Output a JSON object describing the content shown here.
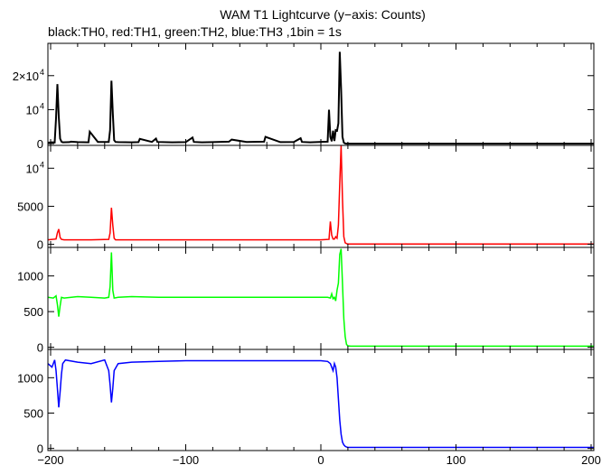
{
  "chart_data": {
    "title": "WAM T1 Lightcurve (y−axis: Counts)",
    "subtitle": "black:TH0, red:TH1, green:TH2, blue:TH3 ,1bin = 1s",
    "type": "line",
    "grid": false,
    "x_range": [
      -202,
      202
    ],
    "x_ticks": [
      {
        "value": -200,
        "label": "−200"
      },
      {
        "value": -100,
        "label": "−100"
      },
      {
        "value": 0,
        "label": "0"
      },
      {
        "value": 100,
        "label": "100"
      },
      {
        "value": 200,
        "label": "200"
      }
    ],
    "panels": [
      {
        "name": "TH0",
        "color": "#000000",
        "ylim": [
          -500,
          29500
        ],
        "y_ticks": [
          {
            "value": 0,
            "label": "0",
            "exp": ""
          },
          {
            "value": 10000,
            "label": "10",
            "exp": "4"
          },
          {
            "value": 20000,
            "label": "2×10",
            "exp": "4"
          }
        ],
        "x": [
          -202,
          -199,
          -197,
          -196,
          -195,
          -194,
          -193,
          -192,
          -191,
          -186,
          -185,
          -180,
          -172,
          -171,
          -165,
          -157,
          -156,
          -155,
          -154,
          -153,
          -152,
          -150,
          -140,
          -135,
          -134,
          -125,
          -122,
          -121,
          -110,
          -100,
          -95,
          -94,
          -88,
          -80,
          -68,
          -66,
          -55,
          -42,
          -41,
          -30,
          -20,
          -15,
          -14,
          -8,
          5,
          6,
          7,
          8,
          9,
          10,
          11,
          12,
          13,
          14,
          15,
          16,
          17,
          18,
          19,
          25,
          60,
          100,
          150,
          202
        ],
        "values": [
          300,
          400,
          350,
          7500,
          17500,
          8000,
          1500,
          600,
          400,
          450,
          600,
          450,
          400,
          3500,
          500,
          500,
          4000,
          18500,
          9000,
          1000,
          500,
          450,
          400,
          450,
          1400,
          500,
          1500,
          500,
          400,
          450,
          1800,
          500,
          400,
          450,
          600,
          1200,
          500,
          600,
          2000,
          450,
          500,
          1600,
          500,
          400,
          600,
          10000,
          2000,
          700,
          3800,
          800,
          4000,
          3800,
          6000,
          27000,
          16000,
          2000,
          300,
          50,
          0,
          0,
          0,
          0,
          0,
          0
        ]
      },
      {
        "name": "TH1",
        "color": "#ff0000",
        "ylim": [
          -400,
          13000
        ],
        "y_ticks": [
          {
            "value": 0,
            "label": "0",
            "exp": ""
          },
          {
            "value": 5000,
            "label": "5000",
            "exp": ""
          },
          {
            "value": 10000,
            "label": "10",
            "exp": "4"
          }
        ],
        "x": [
          -202,
          -196,
          -195,
          -194,
          -193,
          -192,
          -190,
          -170,
          -157,
          -156,
          -155,
          -154,
          -153,
          -152,
          -120,
          -80,
          -40,
          0,
          6,
          7,
          8,
          9,
          10,
          11,
          12,
          13,
          14,
          15,
          16,
          17,
          18,
          19,
          20,
          25,
          60,
          100,
          150,
          202
        ],
        "values": [
          600,
          700,
          1500,
          2000,
          900,
          650,
          600,
          600,
          650,
          1500,
          4800,
          2500,
          800,
          600,
          600,
          600,
          600,
          600,
          650,
          3000,
          1200,
          700,
          700,
          1000,
          800,
          2500,
          8000,
          13000,
          6000,
          1000,
          200,
          100,
          50,
          50,
          50,
          50,
          50,
          50
        ]
      },
      {
        "name": "TH2",
        "color": "#00ff00",
        "ylim": [
          -30,
          1400
        ],
        "y_ticks": [
          {
            "value": 0,
            "label": "0",
            "exp": ""
          },
          {
            "value": 500,
            "label": "500",
            "exp": ""
          },
          {
            "value": 1000,
            "label": "1000",
            "exp": ""
          }
        ],
        "x": [
          -202,
          -198,
          -196,
          -195,
          -194,
          -193,
          -192,
          -190,
          -180,
          -170,
          -160,
          -157,
          -156,
          -155,
          -154,
          -153,
          -150,
          -140,
          -120,
          -100,
          -80,
          -60,
          -40,
          -20,
          0,
          5,
          7,
          8,
          9,
          10,
          11,
          12,
          13,
          14,
          15,
          16,
          17,
          18,
          19,
          20,
          22,
          25,
          60,
          100,
          150,
          202
        ],
        "values": [
          700,
          690,
          720,
          600,
          430,
          580,
          700,
          690,
          710,
          700,
          690,
          700,
          850,
          1330,
          800,
          690,
          700,
          710,
          700,
          700,
          700,
          700,
          700,
          700,
          700,
          700,
          690,
          750,
          680,
          700,
          650,
          800,
          900,
          1300,
          1380,
          900,
          400,
          150,
          40,
          20,
          15,
          15,
          15,
          15,
          15,
          15
        ]
      },
      {
        "name": "TH3",
        "color": "#0000ff",
        "ylim": [
          -30,
          1400
        ],
        "y_ticks": [
          {
            "value": 0,
            "label": "0",
            "exp": ""
          },
          {
            "value": 500,
            "label": "500",
            "exp": ""
          },
          {
            "value": 1000,
            "label": "1000",
            "exp": ""
          }
        ],
        "x": [
          -202,
          -199,
          -197,
          -196,
          -195,
          -194,
          -193,
          -192,
          -191,
          -189,
          -180,
          -170,
          -160,
          -157,
          -156,
          -155,
          -154,
          -153,
          -150,
          -140,
          -120,
          -100,
          -80,
          -60,
          -40,
          -20,
          0,
          5,
          7,
          8,
          9,
          10,
          11,
          12,
          13,
          14,
          15,
          16,
          17,
          18,
          19,
          20,
          22,
          25,
          60,
          100,
          150,
          202
        ],
        "values": [
          1200,
          1150,
          1250,
          1100,
          850,
          580,
          800,
          1050,
          1200,
          1250,
          1220,
          1200,
          1250,
          1100,
          900,
          650,
          850,
          1100,
          1200,
          1220,
          1230,
          1240,
          1240,
          1240,
          1240,
          1240,
          1240,
          1230,
          1200,
          1150,
          1100,
          1200,
          1150,
          1000,
          700,
          400,
          200,
          90,
          50,
          30,
          20,
          15,
          15,
          15,
          15,
          15,
          15,
          15
        ]
      }
    ]
  }
}
